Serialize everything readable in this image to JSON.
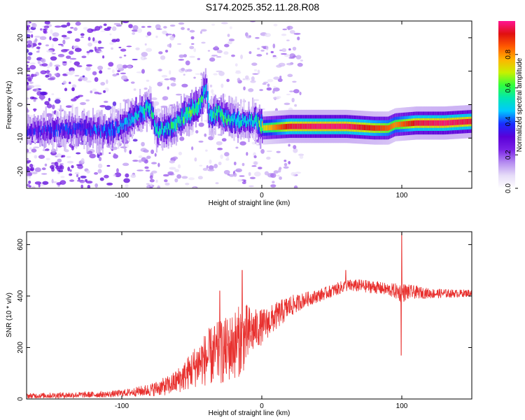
{
  "title": "S174.2025.352.11.28.R08",
  "colors": {
    "line": "#e8302e",
    "axis": "#000000",
    "colormap": [
      "#ffffff",
      "#e6dcf8",
      "#b58cf0",
      "#7a22e6",
      "#5a00d8",
      "#1a2cff",
      "#00c8ff",
      "#00e6b4",
      "#30ff3c",
      "#c8f000",
      "#ffb400",
      "#ff5a00",
      "#e01010",
      "#ff1493"
    ]
  },
  "chart_data": [
    {
      "type": "heatmap",
      "id": "spectrogram",
      "xlabel": "Height of straight line (km)",
      "ylabel": "Frequency (Hz)",
      "xlim": [
        -168,
        150
      ],
      "ylim": [
        -25,
        25
      ],
      "xticks": [
        -100,
        0,
        100
      ],
      "yticks": [
        -20,
        -10,
        0,
        10,
        20
      ],
      "xtick_labels": [
        "-100",
        "0",
        "100"
      ],
      "ytick_labels": [
        "-20",
        "-10",
        "0",
        "10",
        "20"
      ],
      "colorbar": {
        "label": "Normalized spectral amplitude",
        "range": [
          0.0,
          1.0
        ],
        "ticks": [
          0.0,
          0.2,
          0.4,
          0.6,
          0.8
        ],
        "tick_labels": [
          "0.0",
          "0.2",
          "0.4",
          "0.6",
          "0.8"
        ]
      },
      "ridge": {
        "description_points": [
          [
            -168,
            -8
          ],
          [
            -150,
            -7.5
          ],
          [
            -130,
            -7
          ],
          [
            -110,
            -8
          ],
          [
            -100,
            -6.5
          ],
          [
            -90,
            -3
          ],
          [
            -80,
            -1
          ],
          [
            -75,
            -8
          ],
          [
            -65,
            -7
          ],
          [
            -55,
            -3
          ],
          [
            -45,
            0
          ],
          [
            -40,
            5
          ],
          [
            -38,
            -4
          ],
          [
            -32,
            -2
          ],
          [
            -25,
            -4.5
          ],
          [
            -15,
            -5
          ],
          [
            -5,
            -4.5
          ],
          [
            0,
            -7
          ],
          [
            20,
            -6.5
          ],
          [
            40,
            -6.5
          ],
          [
            60,
            -6.5
          ],
          [
            80,
            -7
          ],
          [
            90,
            -7
          ],
          [
            95,
            -6
          ],
          [
            110,
            -5.5
          ],
          [
            130,
            -5.5
          ],
          [
            150,
            -5
          ]
        ],
        "peak_values": [
          0.3,
          0.35,
          0.35,
          0.4,
          0.45,
          0.5,
          0.55,
          0.5,
          0.55,
          0.6,
          0.6,
          0.45,
          0.5,
          0.6,
          0.55,
          0.5,
          0.5,
          0.7,
          0.95,
          0.98,
          0.98,
          0.9,
          0.85,
          0.8,
          0.95,
          0.98,
          0.95
        ]
      }
    },
    {
      "type": "line",
      "id": "snr",
      "xlabel": "Height of straight line (km)",
      "ylabel": "SNR (10 * v/v)",
      "xlim": [
        -168,
        150
      ],
      "ylim": [
        0,
        650
      ],
      "xticks": [
        -100,
        0,
        100
      ],
      "yticks": [
        0,
        200,
        400,
        600
      ],
      "xtick_labels": [
        "-100",
        "0",
        "100"
      ],
      "ytick_labels": [
        "0",
        "200",
        "400",
        "600"
      ],
      "series": [
        {
          "name": "SNR",
          "envelope": {
            "x": [
              -168,
              -140,
              -110,
              -95,
              -80,
              -65,
              -55,
              -45,
              -35,
              -25,
              -15,
              -10,
              -5,
              0,
              5,
              10,
              15,
              20,
              25,
              30,
              40,
              50,
              60,
              70,
              80,
              90,
              95,
              98,
              100,
              102,
              105,
              110,
              120,
              130,
              140,
              150
            ],
            "mean": [
              12,
              15,
              18,
              25,
              35,
              55,
              90,
              140,
              170,
              190,
              230,
              250,
              270,
              280,
              300,
              320,
              340,
              360,
              370,
              385,
              400,
              420,
              440,
              440,
              435,
              425,
              420,
              415,
              410,
              415,
              415,
              415,
              410,
              410,
              410,
              412
            ],
            "noise": [
              10,
              12,
              12,
              15,
              25,
              40,
              60,
              90,
              120,
              130,
              140,
              120,
              80,
              70,
              60,
              55,
              50,
              45,
              35,
              30,
              25,
              25,
              25,
              25,
              25,
              25,
              30,
              35,
              40,
              35,
              30,
              25,
              20,
              18,
              15,
              15
            ]
          },
          "spikes": [
            {
              "x": -14,
              "y": 500
            },
            {
              "x": -30,
              "y": 420
            },
            {
              "x": 100,
              "y": 645
            },
            {
              "x": 99.5,
              "y": 170
            },
            {
              "x": 60,
              "y": 500
            }
          ]
        }
      ]
    }
  ]
}
